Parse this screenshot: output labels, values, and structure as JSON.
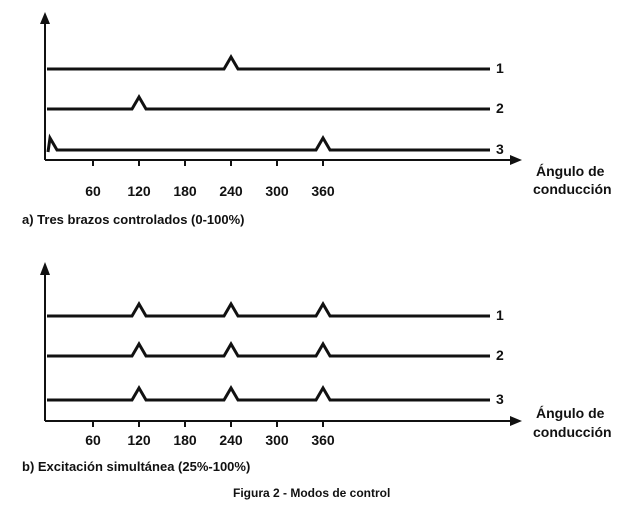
{
  "figure_caption": "Figura 2 - Modos de control",
  "colors": {
    "ink": "#111111",
    "background": "#ffffff"
  },
  "panels": [
    {
      "caption": "a) Tres brazos controlados (0-100%)",
      "x_title_line1": "Ángulo de",
      "x_title_line2": "conducción",
      "ticks": [
        "60",
        "120",
        "180",
        "240",
        "300",
        "360"
      ],
      "tick_values": [
        60,
        120,
        180,
        240,
        300,
        360
      ],
      "lines": [
        {
          "label": "1",
          "spikes": [
            240
          ]
        },
        {
          "label": "2",
          "spikes": [
            120
          ]
        },
        {
          "label": "3",
          "spikes": [
            0,
            360
          ]
        }
      ]
    },
    {
      "caption": "b) Excitación simultánea (25%-100%)",
      "x_title_line1": "Ángulo de",
      "x_title_line2": "conducción",
      "ticks": [
        "60",
        "120",
        "180",
        "240",
        "300",
        "360"
      ],
      "tick_values": [
        60,
        120,
        180,
        240,
        300,
        360
      ],
      "lines": [
        {
          "label": "1",
          "spikes": [
            120,
            240,
            360
          ]
        },
        {
          "label": "2",
          "spikes": [
            120,
            240,
            360
          ]
        },
        {
          "label": "3",
          "spikes": [
            120,
            240,
            360
          ]
        }
      ]
    }
  ]
}
